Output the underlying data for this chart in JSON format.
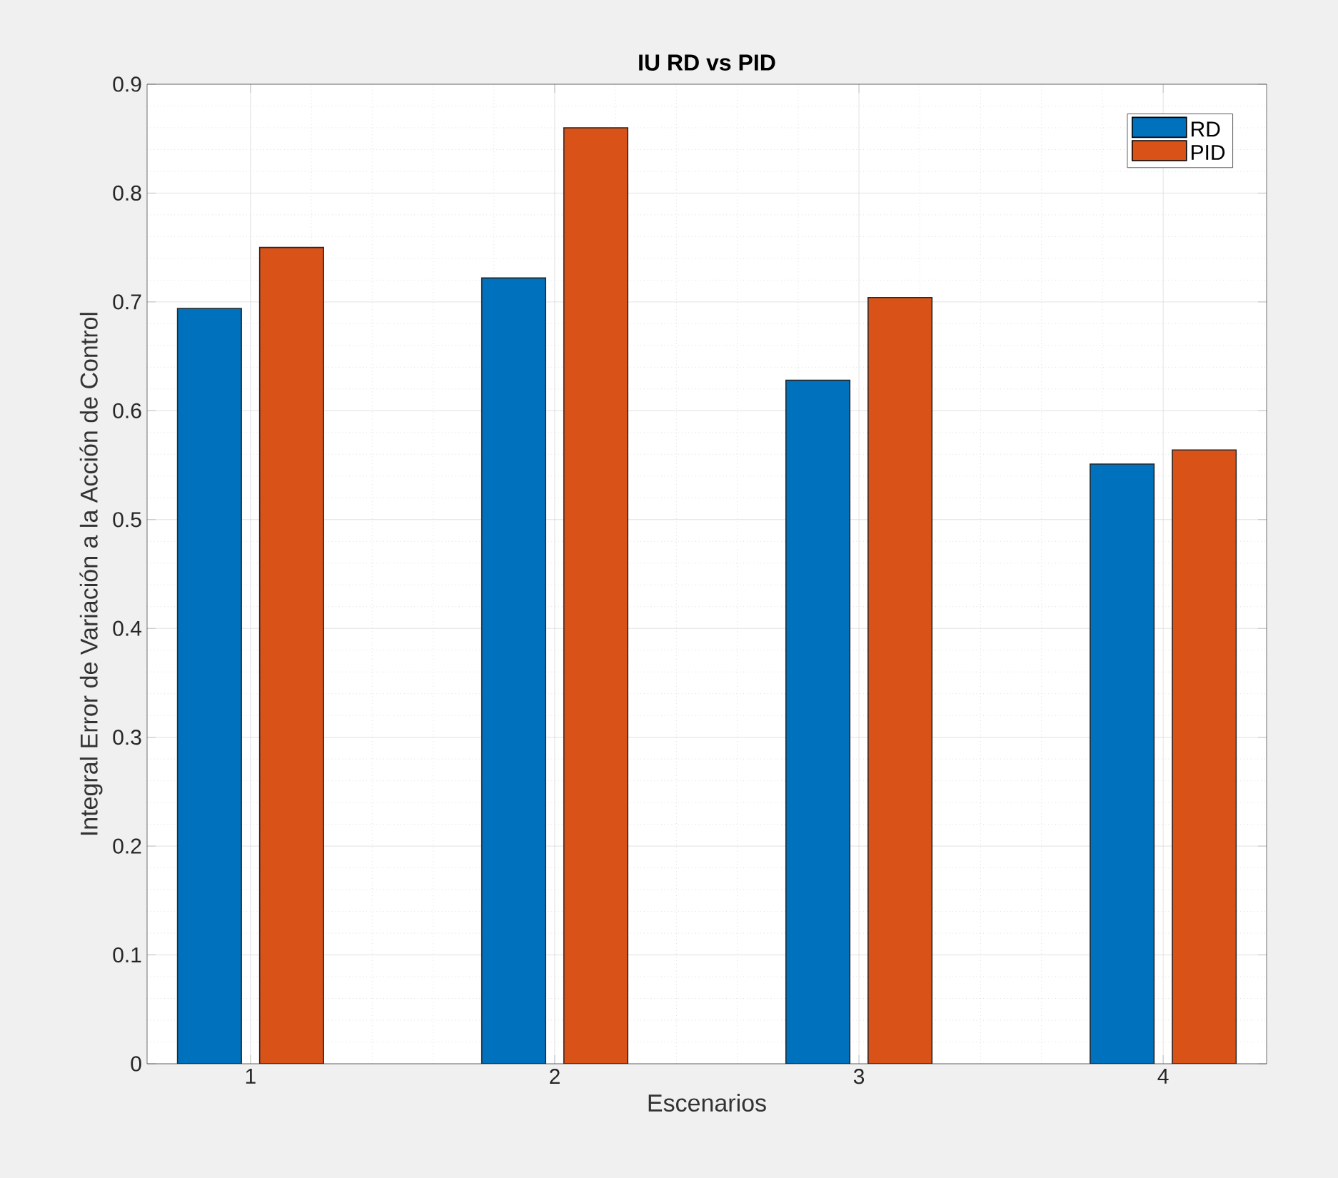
{
  "chart_data": {
    "type": "bar",
    "title": "IU RD vs PID",
    "xlabel": "Escenarios",
    "ylabel": "Integral Error de Variación a la Acción de Control",
    "categories": [
      "1",
      "2",
      "3",
      "4"
    ],
    "series": [
      {
        "name": "RD",
        "color": "#0072bd",
        "values": [
          0.694,
          0.722,
          0.628,
          0.551
        ]
      },
      {
        "name": "PID",
        "color": "#d95319",
        "values": [
          0.75,
          0.86,
          0.704,
          0.564
        ]
      }
    ],
    "ylim": [
      0,
      0.9
    ],
    "yticks": [
      0,
      0.1,
      0.2,
      0.3,
      0.4,
      0.5,
      0.6,
      0.7,
      0.8,
      0.9
    ],
    "grid": true,
    "legend": "top right"
  }
}
